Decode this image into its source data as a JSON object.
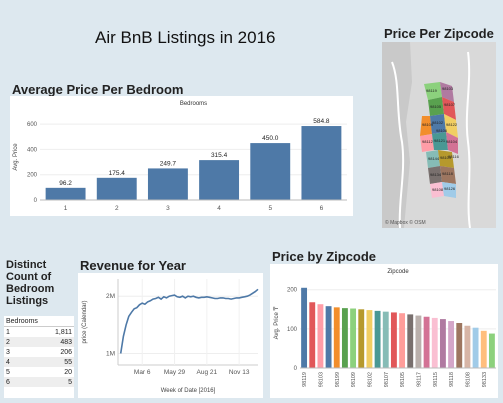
{
  "dashboard": {
    "title": "Air BnB Listings in 2016"
  },
  "avg_price": {
    "section_title": "Average Price Per Bedroom",
    "header": "Bedrooms",
    "chart_data": {
      "type": "bar",
      "categories": [
        "1",
        "2",
        "3",
        "4",
        "5",
        "6"
      ],
      "values": [
        96.2,
        175.4,
        249.7,
        315.4,
        450.0,
        584.8
      ],
      "value_labels": [
        "96.2",
        "175.4",
        "249.7",
        "315.4",
        "450.0",
        "584.8"
      ],
      "ylabel": "Avg. Price",
      "yticks": [
        0,
        200,
        400,
        600
      ],
      "ylim": [
        0,
        680
      ],
      "color": "#4e79a7"
    }
  },
  "zip_map": {
    "section_title": "Price Per Zipcode",
    "attribution": "© Mapbox © OSM",
    "labels": [
      "98119",
      "98103",
      "98105",
      "98107",
      "98109",
      "98102",
      "98122",
      "98112",
      "98121",
      "98104",
      "98144",
      "98101",
      "98134",
      "98118",
      "98108",
      "98126",
      "98116",
      "98106"
    ]
  },
  "bed_count": {
    "title_lines": [
      "Distinct",
      "Count of",
      "Bedroom",
      "Listings"
    ],
    "header": "Bedrooms",
    "rows": [
      {
        "bedrooms": "1",
        "count": "1,811"
      },
      {
        "bedrooms": "2",
        "count": "483"
      },
      {
        "bedrooms": "3",
        "count": "206"
      },
      {
        "bedrooms": "4",
        "count": "55"
      },
      {
        "bedrooms": "5",
        "count": "20"
      },
      {
        "bedrooms": "6",
        "count": "5"
      }
    ]
  },
  "revenue": {
    "section_title": "Revenue for Year",
    "chart_data": {
      "type": "line",
      "x_labels": [
        "Mar 6",
        "May 29",
        "Aug 21",
        "Nov 13"
      ],
      "y_ticks": [
        "1M",
        "2M"
      ],
      "y_tick_values": [
        1.0,
        2.0
      ],
      "ylim": [
        0.8,
        2.3
      ],
      "xlim": [
        0,
        52
      ],
      "x_tick_weeks": [
        9,
        21,
        33,
        45
      ],
      "xlabel": "Week of Date [2016]",
      "ylabel": "price (Calendar)",
      "points": [
        [
          1,
          1.0
        ],
        [
          2,
          1.3
        ],
        [
          3,
          1.5
        ],
        [
          4,
          1.65
        ],
        [
          5,
          1.72
        ],
        [
          6,
          1.78
        ],
        [
          7,
          1.8
        ],
        [
          8,
          1.85
        ],
        [
          9,
          1.88
        ],
        [
          10,
          1.86
        ],
        [
          11,
          1.9
        ],
        [
          12,
          1.92
        ],
        [
          13,
          1.95
        ],
        [
          14,
          1.96
        ],
        [
          15,
          1.98
        ],
        [
          16,
          1.95
        ],
        [
          17,
          1.99
        ],
        [
          18,
          1.97
        ],
        [
          19,
          2.0
        ],
        [
          20,
          2.01
        ],
        [
          21,
          2.02
        ],
        [
          22,
          1.99
        ],
        [
          23,
          1.98
        ],
        [
          24,
          2.0
        ],
        [
          25,
          1.97
        ],
        [
          26,
          2.0
        ],
        [
          27,
          1.99
        ],
        [
          28,
          2.0
        ],
        [
          29,
          1.98
        ],
        [
          30,
          1.97
        ],
        [
          31,
          1.98
        ],
        [
          32,
          1.98
        ],
        [
          33,
          1.99
        ],
        [
          34,
          1.98
        ],
        [
          35,
          1.97
        ],
        [
          36,
          1.96
        ],
        [
          37,
          1.96
        ],
        [
          38,
          1.97
        ],
        [
          39,
          1.97
        ],
        [
          40,
          1.96
        ],
        [
          41,
          1.96
        ],
        [
          42,
          1.95
        ],
        [
          43,
          1.96
        ],
        [
          44,
          1.97
        ],
        [
          45,
          1.97
        ],
        [
          46,
          1.98
        ],
        [
          47,
          1.99
        ],
        [
          48,
          2.0
        ],
        [
          49,
          2.02
        ],
        [
          50,
          2.05
        ],
        [
          51,
          2.08
        ],
        [
          52,
          2.12
        ]
      ],
      "color": "#4e79a7"
    }
  },
  "price_zip": {
    "section_title": "Price by Zipcode",
    "header": "Zipcode",
    "chart_data": {
      "type": "bar",
      "categories": [
        "98119",
        "",
        "98103",
        "",
        "98199",
        "",
        "98109",
        "",
        "98102",
        "",
        "98107",
        "",
        "98105",
        "",
        "98117",
        "",
        "98115",
        "",
        "98118",
        "",
        "98108",
        "",
        "98133",
        ""
      ],
      "values": [
        205,
        168,
        163,
        158,
        155,
        153,
        152,
        150,
        148,
        146,
        144,
        142,
        140,
        137,
        134,
        131,
        128,
        125,
        120,
        115,
        108,
        103,
        95,
        88
      ],
      "colors": [
        "#4e79a7",
        "#e15759",
        "#ff9da7",
        "#4e79a7",
        "#f28e2b",
        "#59a14f",
        "#8cd17d",
        "#b6992d",
        "#f1ce63",
        "#499894",
        "#86bcb6",
        "#e15759",
        "#ff9d9a",
        "#79706e",
        "#bab0ac",
        "#d37295",
        "#fabfd2",
        "#b07aa1",
        "#d4a6c8",
        "#9d7660",
        "#d7b5a6",
        "#a0cbe8",
        "#ffbe7d",
        "#8cd17d"
      ],
      "ylabel": "Avg. Price ₸",
      "yticks": [
        0,
        100,
        200
      ],
      "ylim": [
        0,
        230
      ]
    }
  }
}
